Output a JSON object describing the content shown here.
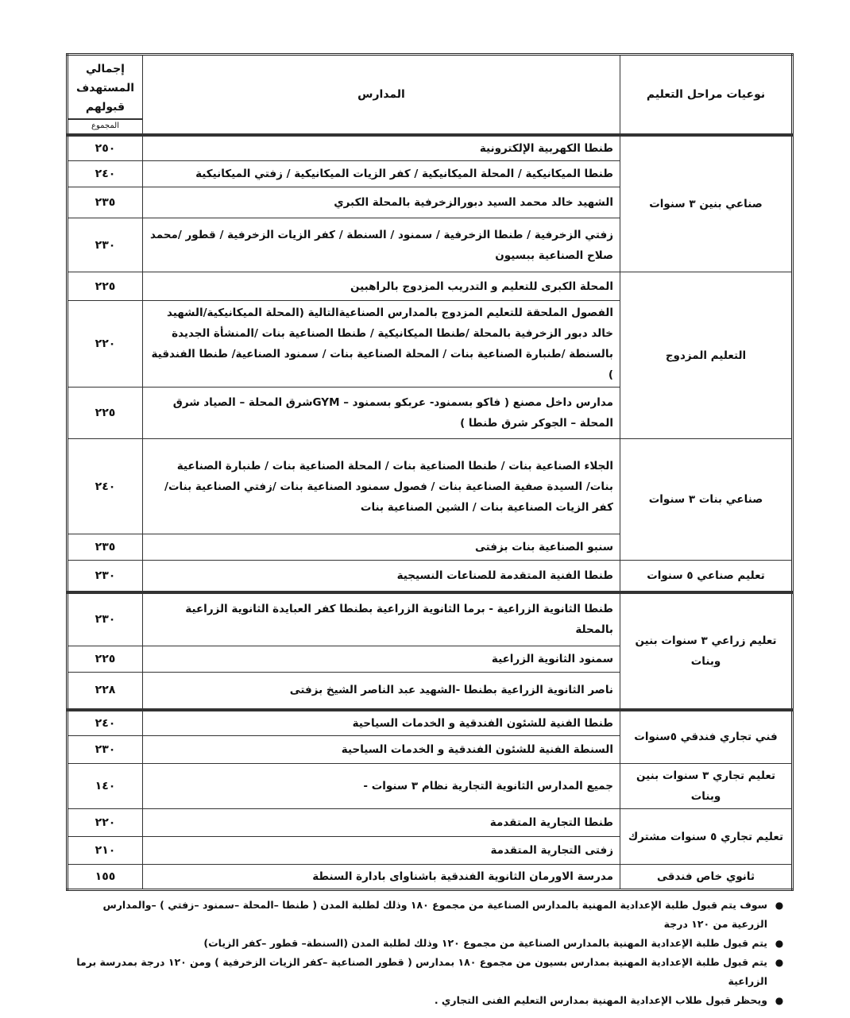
{
  "header": {
    "type_label": "نوعيات مراحل التعليم",
    "schools_label": "المدارس",
    "total_label": "إجمالي المستهدف قبولهم",
    "total_sub": "المجموع"
  },
  "groups": [
    {
      "type": "صناعي بنين ٣ سنوات",
      "rows": [
        {
          "school": "طنطا الكهربية الإلكترونية",
          "total": "٢٥٠",
          "h": 33
        },
        {
          "school": "طنطا الميكانيكية / المحلة الميكانيكية / كفر الزيات الميكانيكية / زفتي الميكانيكية",
          "total": "٢٤٠",
          "h": 33
        },
        {
          "school": "الشهيد خالد محمد السيد دبورالزخرفية بالمحلة الكبري",
          "total": "٢٣٥",
          "h": 39
        },
        {
          "school": "زفتي الزخرفية / طنطا الزخرفية / سمنود / السنطة / كفر الزيات الزخرفية / قطور /محمد صلاح الصناعية ببسيون",
          "total": "٢٣٠",
          "h": 68
        }
      ]
    },
    {
      "type": "التعليم المزدوج",
      "rows": [
        {
          "school": "المحلة الكبرى للتعليم و التدريب المزدوج بالراهبين",
          "total": "٢٢٥",
          "h": 36
        },
        {
          "school": "الفصول الملحقة للتعليم المزدوج بالمدارس الصناعيةالتالية (المحلة الميكانيكية/الشهيد خالد دبور الزخرفية بالمحلة /طنطا الميكانيكية / طنطا الصناعية بنات /المنشأة الجديدة بالسنطة /طنبارة الصناعية بنات / المحلة الصناعية بنات / سمنود الصناعية/ طنطا الفندقية )",
          "total": "٢٢٠",
          "h": 101
        },
        {
          "school": "مدارس داخل مصنع ( فاكو بسمنود- عربكو بسمنود – GYMشرق المحلة – الصياد شرق المحلة – الجوكر شرق طنطا )",
          "total": "٢٢٥",
          "h": 65
        }
      ]
    },
    {
      "type": "صناعي بنات ٣ سنوات",
      "rows": [
        {
          "school": "الجلاء الصناعية بنات / طنطا الصناعية بنات / المحلة الصناعية بنات / طنبارة الصناعية بنات/ السيدة صفية الصناعية بنات / فصول سمنود الصناعية بنات /زفتي الصناعية بنات/ كفر الزيات الصناعية بنات / الشين الصناعية بنات",
          "total": "٢٤٠",
          "h": 120
        },
        {
          "school": "سنبو الصناعية بنات بزفتى",
          "total": "٢٣٥",
          "h": 33
        }
      ]
    },
    {
      "type": "تعليم صناعي ٥ سنوات",
      "rows": [
        {
          "school": "طنطا الفنية المتقدمة للصناعات النسيجية",
          "total": "٢٣٠",
          "h": 40
        }
      ]
    },
    {
      "type": "تعليم زراعي ٣ سنوات بنين وبنات",
      "thick": true,
      "rows": [
        {
          "school": "طنطا الثانوية الزراعية - برما الثانوية الزراعية بطنطا كفر العبايدة الثانوية الزراعية بالمحلة",
          "total": "٢٣٠",
          "h": 68
        },
        {
          "school": "سمنود الثانوية الزراعية",
          "total": "٢٢٥",
          "h": 33
        },
        {
          "school": "ناصر الثانوية الزراعية بطنطا -الشهيد عبد الناصر الشيخ بزفتى",
          "total": "٢٢٨",
          "h": 47
        }
      ]
    },
    {
      "type": "فني تجاري فندقي ٥سنوات",
      "thick": true,
      "rows": [
        {
          "school": "طنطا الفنية للشئون الفندقية و الخدمات السياحية",
          "total": "٢٤٠",
          "h": 33
        },
        {
          "school": "السنطة الفنية للشئون الفندقية و الخدمات السياحية",
          "total": "٢٣٠",
          "h": 35
        }
      ]
    },
    {
      "type": "تعليم تجاري ٣ سنوات بنين وبنات",
      "rows": [
        {
          "school": "جميع المدارس الثانوية التجارية نظام ٣ سنوات -",
          "total": "١٤٠",
          "h": 35
        }
      ]
    },
    {
      "type": "تعليم تجاري ٥ سنوات مشترك",
      "rows": [
        {
          "school": "طنطا التجارية المتقدمة",
          "total": "٢٢٠",
          "h": 35
        },
        {
          "school": "زفتى التجارية المتقدمة",
          "total": "٢١٠",
          "h": 35
        }
      ]
    },
    {
      "type": "ثانوي خاص فندقى",
      "rows": [
        {
          "school": "مدرسة الاورمان الثانوية الفندقية باشناواى بادارة السنطة",
          "total": "١٥٥",
          "h": 32
        }
      ]
    }
  ],
  "notes": [
    "سوف يتم قبول طلبة الإعدادية المهنية بالمدارس الصناعية من مجموع ١٨٠ وذلك لطلبة المدن ( طنطا –المحلة –سمنود –زفتي ) –والمدارس الزرعية من ١٢٠ درجة",
    "يتم قبول طلبة الإعدادية المهنية بالمدارس الصناعية من مجموع ١٢٠ وذلك لطلبة المدن (السنطة– قطور –كفر الزيات)",
    "يتم قبول طلبة الإعدادية المهنية بمدارس بسيون من مجموع ١٨٠ بمدارس ( قطور الصناعية –كفر الزيات الزخرفية ) ومن ١٢٠ درجة بمدرسة برما الزراعية",
    "ويحظر قبول طلاب الإعدادية المهنية بمدارس التعليم الفنى التجاري ."
  ]
}
